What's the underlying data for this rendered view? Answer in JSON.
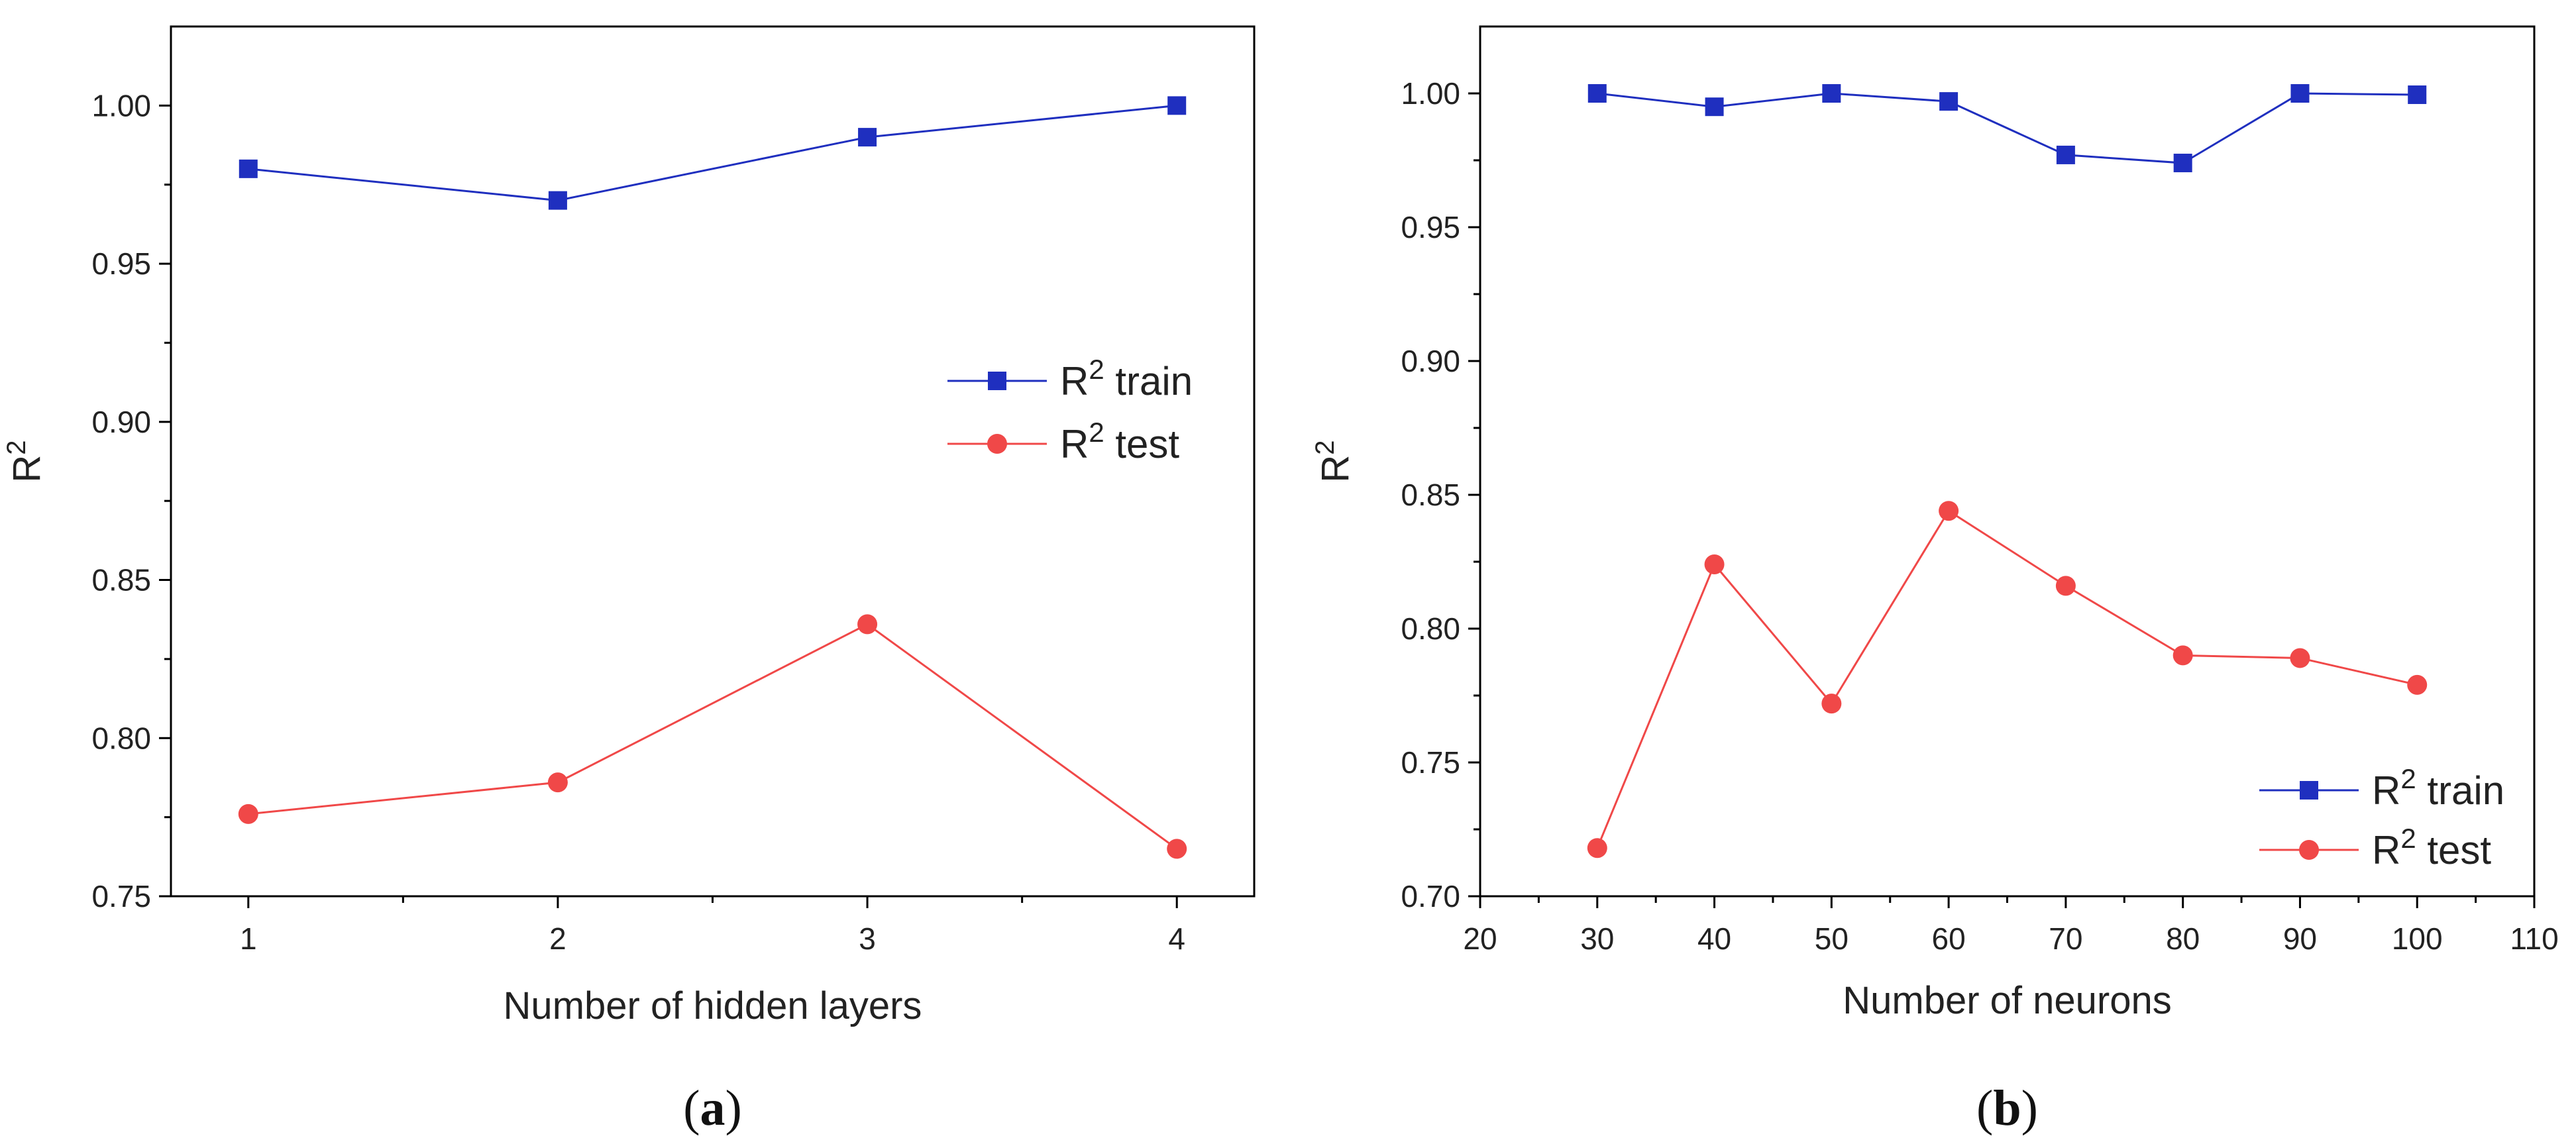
{
  "chart_data": [
    {
      "type": "line",
      "panel": "a",
      "caption": "a",
      "xlabel": "Number of hidden layers",
      "ylabel": "R",
      "ylabel_sup": "2",
      "xlim": [
        0.75,
        4.25
      ],
      "ylim": [
        0.75,
        1.025
      ],
      "xticks": [
        1,
        2,
        3,
        4
      ],
      "xtick_labels": [
        "1",
        "2",
        "3",
        "4"
      ],
      "yticks": [
        0.75,
        0.8,
        0.85,
        0.9,
        0.95,
        1.0
      ],
      "ytick_labels": [
        "0.75",
        "0.80",
        "0.85",
        "0.90",
        "0.95",
        "1.00"
      ],
      "legend_position": "center-right",
      "series": [
        {
          "name": "R2 train",
          "label_base": "R",
          "label_sup": "2",
          "label_rest": " train",
          "color": "#1f2fbf",
          "marker": "square",
          "x": [
            1,
            2,
            3,
            4
          ],
          "values": [
            0.98,
            0.97,
            0.99,
            1.0
          ]
        },
        {
          "name": "R2 test",
          "label_base": "R",
          "label_sup": "2",
          "label_rest": " test",
          "color": "#f04848",
          "marker": "circle",
          "x": [
            1,
            2,
            3,
            4
          ],
          "values": [
            0.776,
            0.786,
            0.836,
            0.765
          ]
        }
      ]
    },
    {
      "type": "line",
      "panel": "b",
      "caption": "b",
      "xlabel": "Number of neurons",
      "ylabel": "R",
      "ylabel_sup": "2",
      "xlim": [
        20,
        110
      ],
      "ylim": [
        0.7,
        1.025
      ],
      "xticks": [
        20,
        30,
        40,
        50,
        60,
        70,
        80,
        90,
        100,
        110
      ],
      "xtick_labels": [
        "20",
        "30",
        "40",
        "50",
        "60",
        "70",
        "80",
        "90",
        "100",
        "110"
      ],
      "yticks": [
        0.7,
        0.75,
        0.8,
        0.85,
        0.9,
        0.95,
        1.0
      ],
      "ytick_labels": [
        "0.70",
        "0.75",
        "0.80",
        "0.85",
        "0.90",
        "0.95",
        "1.00"
      ],
      "legend_position": "bottom-right",
      "series": [
        {
          "name": "R2 train",
          "label_base": "R",
          "label_sup": "2",
          "label_rest": " train",
          "color": "#1f2fbf",
          "marker": "square",
          "x": [
            30,
            40,
            50,
            60,
            70,
            80,
            90,
            100
          ],
          "values": [
            1.0,
            0.995,
            1.0,
            0.997,
            0.977,
            0.974,
            1.0,
            0.9995
          ]
        },
        {
          "name": "R2 test",
          "label_base": "R",
          "label_sup": "2",
          "label_rest": " test",
          "color": "#f04848",
          "marker": "circle",
          "x": [
            30,
            40,
            50,
            60,
            70,
            80,
            90,
            100
          ],
          "values": [
            0.718,
            0.824,
            0.772,
            0.844,
            0.816,
            0.79,
            0.789,
            0.779
          ]
        }
      ]
    }
  ]
}
